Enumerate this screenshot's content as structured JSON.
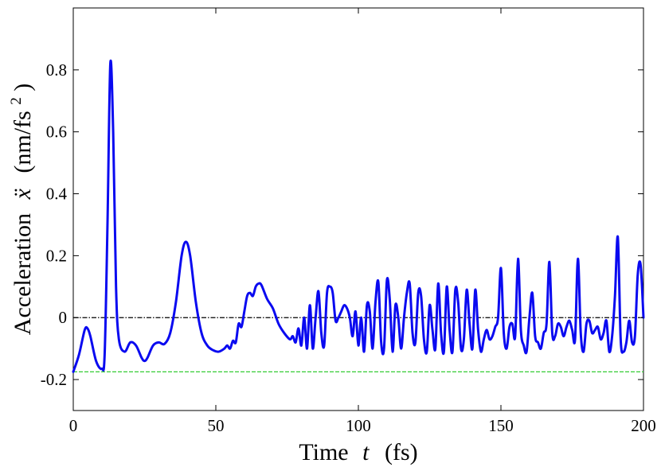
{
  "chart_data": {
    "type": "line",
    "xlabel": {
      "prefix": "Time",
      "var": "t",
      "unit": "(fs)"
    },
    "ylabel": {
      "prefix": "Acceleration",
      "var": "ẍ",
      "unit_open": "(nm/fs",
      "unit_sup": "2",
      "unit_close": ")"
    },
    "xlim": [
      0,
      200
    ],
    "ylim": [
      -0.3,
      1.0
    ],
    "xticks": [
      0,
      50,
      100,
      150,
      200
    ],
    "xtick_labels": [
      "0",
      "50",
      "100",
      "150",
      "200"
    ],
    "yticks": [
      -0.2,
      0,
      0.2,
      0.4,
      0.6,
      0.8
    ],
    "ytick_labels": [
      "-0.2",
      "0",
      "0.2",
      "0.4",
      "0.6",
      "0.8"
    ],
    "grid": false,
    "legend": "none",
    "reference_lines": [
      {
        "y": 0,
        "color": "#000000",
        "style": "dash-dot"
      },
      {
        "y": -0.175,
        "color": "#33cc33",
        "style": "dashed"
      }
    ],
    "series": [
      {
        "color": "#0a0af0",
        "x": [
          0,
          2,
          4,
          5,
          6,
          8,
          10,
          11,
          12,
          13,
          14,
          15,
          16,
          18,
          20,
          22,
          24,
          25,
          26,
          28,
          30,
          32,
          34,
          36,
          38,
          39.5,
          41,
          43,
          45,
          47,
          49,
          51,
          53,
          54,
          55,
          56,
          57,
          58,
          59,
          60,
          61,
          62,
          63,
          64,
          65,
          66,
          68,
          70,
          72,
          74,
          76,
          77,
          78,
          79,
          80,
          81,
          82,
          83,
          84,
          85,
          86,
          87,
          88,
          89,
          90,
          91,
          92,
          93,
          94,
          95,
          96,
          97,
          98,
          99,
          100,
          101,
          102,
          103,
          104,
          105,
          106,
          107,
          108,
          109,
          110,
          111,
          112,
          113,
          114,
          115,
          116,
          117,
          118,
          119,
          120,
          121,
          122,
          123,
          124,
          125,
          126,
          127,
          128,
          129,
          130,
          131,
          132,
          133,
          134,
          135,
          136,
          137,
          138,
          139,
          140,
          141,
          142,
          143,
          144,
          145,
          146,
          147,
          148,
          149,
          150,
          151,
          152,
          153,
          154,
          155,
          156,
          157,
          158,
          159,
          160,
          161,
          162,
          163,
          164,
          165,
          166,
          167,
          168,
          169,
          170,
          171,
          172,
          173,
          174,
          175,
          176,
          177,
          178,
          179,
          180,
          181,
          182,
          183,
          184,
          185,
          186,
          187,
          188,
          189,
          190,
          191,
          192,
          193,
          194,
          195,
          196,
          197,
          198,
          199,
          200
        ],
        "y": [
          -0.175,
          -0.12,
          -0.04,
          -0.035,
          -0.06,
          -0.14,
          -0.165,
          -0.12,
          0.3,
          0.82,
          0.6,
          0.1,
          -0.07,
          -0.11,
          -0.08,
          -0.09,
          -0.13,
          -0.14,
          -0.13,
          -0.09,
          -0.08,
          -0.085,
          -0.05,
          0.05,
          0.2,
          0.245,
          0.2,
          0.05,
          -0.05,
          -0.09,
          -0.105,
          -0.11,
          -0.1,
          -0.09,
          -0.1,
          -0.075,
          -0.08,
          -0.02,
          -0.03,
          0.02,
          0.07,
          0.08,
          0.07,
          0.1,
          0.11,
          0.105,
          0.06,
          0.03,
          -0.02,
          -0.05,
          -0.07,
          -0.06,
          -0.08,
          -0.035,
          -0.09,
          0.0,
          -0.1,
          0.04,
          -0.1,
          0.0,
          0.085,
          -0.05,
          -0.09,
          0.08,
          0.1,
          0.08,
          -0.01,
          0.0,
          0.02,
          0.04,
          0.03,
          0.0,
          -0.06,
          0.02,
          -0.09,
          0.0,
          -0.11,
          0.04,
          0.02,
          -0.1,
          0.05,
          0.115,
          -0.08,
          -0.1,
          0.12,
          0.06,
          -0.11,
          0.04,
          0.0,
          -0.1,
          0.0,
          0.08,
          0.11,
          -0.05,
          -0.08,
          0.08,
          0.07,
          -0.07,
          -0.11,
          0.04,
          -0.04,
          -0.1,
          0.11,
          -0.05,
          -0.11,
          0.1,
          -0.04,
          -0.11,
          0.09,
          0.05,
          -0.1,
          -0.07,
          0.09,
          -0.02,
          -0.1,
          0.09,
          -0.04,
          -0.11,
          -0.07,
          -0.04,
          -0.07,
          -0.06,
          -0.03,
          0.0,
          0.16,
          -0.05,
          -0.1,
          -0.03,
          -0.02,
          -0.06,
          0.19,
          -0.04,
          -0.09,
          -0.11,
          0.0,
          0.08,
          -0.06,
          -0.08,
          -0.1,
          -0.05,
          -0.02,
          0.18,
          -0.05,
          -0.06,
          -0.02,
          -0.03,
          -0.06,
          -0.03,
          -0.01,
          -0.04,
          -0.07,
          0.19,
          -0.05,
          -0.11,
          -0.02,
          -0.01,
          -0.05,
          -0.04,
          -0.03,
          -0.07,
          -0.05,
          -0.01,
          -0.11,
          -0.06,
          0.07,
          0.26,
          -0.07,
          -0.11,
          -0.08,
          -0.01,
          -0.08,
          -0.06,
          0.14,
          0.17,
          0.0
        ]
      }
    ]
  }
}
